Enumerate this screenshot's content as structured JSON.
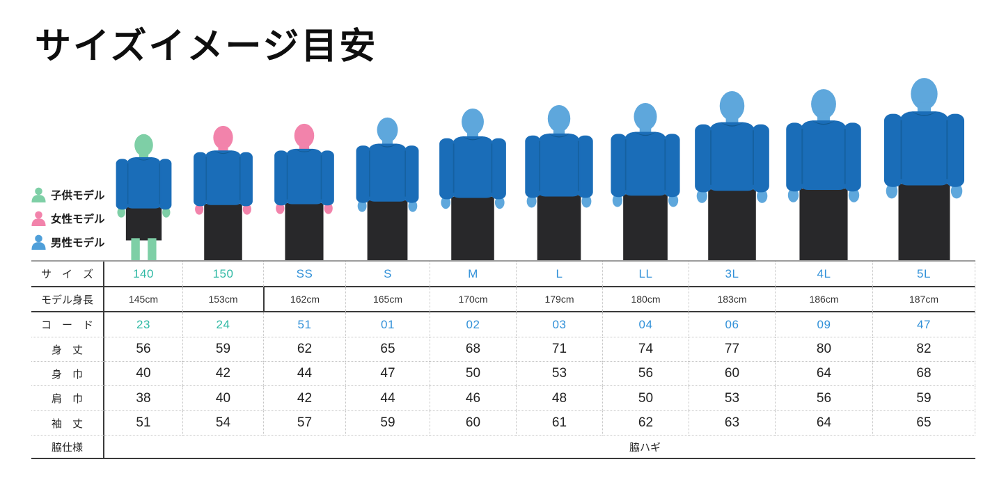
{
  "title": "サイズイメージ目安",
  "legend": {
    "items": [
      {
        "role": "child",
        "label": "子供モデル",
        "color": "#7ecfa6"
      },
      {
        "role": "female",
        "label": "女性モデル",
        "color": "#f283ab"
      },
      {
        "role": "male",
        "label": "男性モデル",
        "color": "#4f9fd9"
      }
    ]
  },
  "models": [
    {
      "size": "140",
      "role": "child"
    },
    {
      "size": "150",
      "role": "female"
    },
    {
      "size": "SS",
      "role": "female"
    },
    {
      "size": "S",
      "role": "male"
    },
    {
      "size": "M",
      "role": "male"
    },
    {
      "size": "L",
      "role": "male"
    },
    {
      "size": "LL",
      "role": "male"
    },
    {
      "size": "3L",
      "role": "male"
    },
    {
      "size": "4L",
      "role": "male"
    },
    {
      "size": "5L",
      "role": "male"
    }
  ],
  "table": {
    "size_row": {
      "label": "サ　イ　ズ",
      "values": [
        "140",
        "150",
        "SS",
        "S",
        "M",
        "L",
        "LL",
        "3L",
        "4L",
        "5L"
      ],
      "kids_count": 2
    },
    "height_row": {
      "label": "モデル身長",
      "values": [
        "145cm",
        "153cm",
        "162cm",
        "165cm",
        "170cm",
        "179cm",
        "180cm",
        "183cm",
        "186cm",
        "187cm"
      ]
    },
    "code_row": {
      "label": "コ　ー　ド",
      "values": [
        "23",
        "24",
        "51",
        "01",
        "02",
        "03",
        "04",
        "06",
        "09",
        "47"
      ],
      "kids_count": 2
    },
    "measure_rows": [
      {
        "key": "body-length",
        "label": "身　丈",
        "values": [
          "56",
          "59",
          "62",
          "65",
          "68",
          "71",
          "74",
          "77",
          "80",
          "82"
        ]
      },
      {
        "key": "body-width",
        "label": "身　巾",
        "values": [
          "40",
          "42",
          "44",
          "47",
          "50",
          "53",
          "56",
          "60",
          "64",
          "68"
        ]
      },
      {
        "key": "shoulder-width",
        "label": "肩　巾",
        "values": [
          "38",
          "40",
          "42",
          "44",
          "46",
          "48",
          "50",
          "53",
          "56",
          "59"
        ]
      },
      {
        "key": "sleeve-length",
        "label": "袖　丈",
        "values": [
          "51",
          "54",
          "57",
          "59",
          "60",
          "61",
          "62",
          "63",
          "64",
          "65"
        ]
      }
    ],
    "side_row": {
      "label": "脇仕様",
      "value": "脇ハギ"
    }
  },
  "colors": {
    "kids_text": "#2fb9a4",
    "adult_text": "#3090d8",
    "shirt": "#1a6db8",
    "shirt_dark": "#12588f",
    "pants": "#28282a",
    "child_skin": "#7ecfa6",
    "female_skin": "#f283ab",
    "male_skin": "#5ea7dc"
  },
  "chart_data": {
    "type": "table",
    "title": "サイズイメージ目安",
    "columns": [
      "140",
      "150",
      "SS",
      "S",
      "M",
      "L",
      "LL",
      "3L",
      "4L",
      "5L"
    ],
    "rows": [
      {
        "label": "モデル身長",
        "values": [
          "145cm",
          "153cm",
          "162cm",
          "165cm",
          "170cm",
          "179cm",
          "180cm",
          "183cm",
          "186cm",
          "187cm"
        ]
      },
      {
        "label": "コード",
        "values": [
          "23",
          "24",
          "51",
          "01",
          "02",
          "03",
          "04",
          "06",
          "09",
          "47"
        ]
      },
      {
        "label": "身丈",
        "values": [
          56,
          59,
          62,
          65,
          68,
          71,
          74,
          77,
          80,
          82
        ]
      },
      {
        "label": "身巾",
        "values": [
          40,
          42,
          44,
          47,
          50,
          53,
          56,
          60,
          64,
          68
        ]
      },
      {
        "label": "肩巾",
        "values": [
          38,
          40,
          42,
          44,
          46,
          48,
          50,
          53,
          56,
          59
        ]
      },
      {
        "label": "袖丈",
        "values": [
          51,
          54,
          57,
          59,
          60,
          61,
          62,
          63,
          64,
          65
        ]
      },
      {
        "label": "脇仕様",
        "values": "脇ハギ"
      }
    ],
    "legend": [
      "子供モデル",
      "女性モデル",
      "男性モデル"
    ]
  }
}
